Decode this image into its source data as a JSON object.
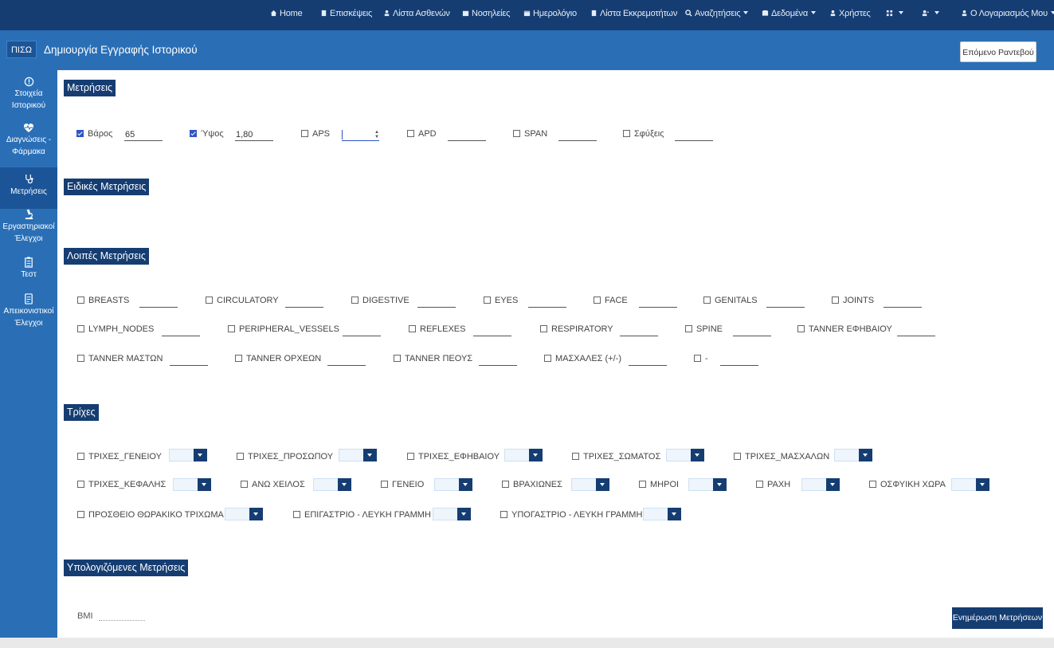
{
  "topnav": {
    "items": [
      {
        "label": "Home",
        "icon": "home-icon"
      },
      {
        "label": "Επισκέψεις",
        "icon": "document-icon"
      },
      {
        "label": "Λίστα Ασθενών",
        "icon": "user-icon"
      },
      {
        "label": "Νοσηλείες",
        "icon": "hospital-icon"
      },
      {
        "label": "Ημερολόγιο",
        "icon": "calendar-icon"
      },
      {
        "label": "Λίστα Εκκρεμοτήτων",
        "icon": "clipboard-icon"
      },
      {
        "label": "Αναζητήσεις",
        "icon": "search-icon"
      },
      {
        "label": "Δεδομένα",
        "icon": "database-icon"
      },
      {
        "label": "Χρήστες",
        "icon": "user-icon"
      },
      {
        "label": "",
        "icon": "grid-icon"
      },
      {
        "label": "",
        "icon": "user-plus-icon"
      },
      {
        "label": "Ο Λογαριασμός Μου",
        "icon": "user-icon"
      }
    ]
  },
  "header": {
    "back_label": "ΠΙΣΩ",
    "title": "Δημιουργία Εγγραφής Ιστορικού",
    "next_appointment_label": "Επόμενο Ραντεβού"
  },
  "sidebar": {
    "items": [
      {
        "line1": "Στοιχεία",
        "line2": "Ιστορικού",
        "icon": "info-icon"
      },
      {
        "line1": "Διαγνώσεις -",
        "line2": "Φάρμακα",
        "icon": "heartbeat-icon"
      },
      {
        "line1": "Μετρήσεις",
        "line2": "",
        "icon": "stethoscope-icon"
      },
      {
        "line1": "Εργαστηριακοί",
        "line2": "Έλεγχοι",
        "icon": "microscope-icon"
      },
      {
        "line1": "Τεστ",
        "line2": "",
        "icon": "checklist-icon"
      },
      {
        "line1": "Απεικονιστικοί",
        "line2": "Έλεγχοι",
        "icon": "scan-icon"
      }
    ]
  },
  "sections": {
    "measurements": "Μετρήσεις",
    "special": "Ειδικές Μετρήσεις",
    "other": "Λοιπές Μετρήσεις",
    "hair": "Τρίχες",
    "computed": "Υπολογιζόμενες Μετρήσεις"
  },
  "measurements": [
    {
      "label": "Βάρος",
      "value": "65",
      "checked": true
    },
    {
      "label": "Ύψος",
      "value": "1,80",
      "checked": true
    },
    {
      "label": "APS",
      "value": "",
      "checked": false
    },
    {
      "label": "APD",
      "value": "",
      "checked": false
    },
    {
      "label": "SPAN",
      "value": "",
      "checked": false
    },
    {
      "label": "Σφύξεις",
      "value": "",
      "checked": false
    }
  ],
  "other_measurements": [
    {
      "label": "BREASTS"
    },
    {
      "label": "CIRCULATORY"
    },
    {
      "label": "DIGESTIVE"
    },
    {
      "label": "EYES"
    },
    {
      "label": "FACE"
    },
    {
      "label": "GENITALS"
    },
    {
      "label": "JOINTS"
    },
    {
      "label": "LYMPH_NODES"
    },
    {
      "label": "PERIPHERAL_VESSELS"
    },
    {
      "label": "REFLEXES"
    },
    {
      "label": "RESPIRATORY"
    },
    {
      "label": "SPINE"
    },
    {
      "label": "TANNER ΕΦΗΒΑΙΟΥ"
    },
    {
      "label": "TANNER ΜΑΣΤΩΝ"
    },
    {
      "label": "TANNER ΟΡΧΕΩΝ"
    },
    {
      "label": "TANNER ΠΕΟΥΣ"
    },
    {
      "label": "ΜΑΣΧΑΛΕΣ (+/-)"
    },
    {
      "label": "-"
    }
  ],
  "hair": [
    {
      "label": "ΤΡΙΧΕΣ_ΓΕΝΕΙΟΥ"
    },
    {
      "label": "ΤΡΙΧΕΣ_ΠΡΟΣΩΠΟΥ"
    },
    {
      "label": "ΤΡΙΧΕΣ_ΕΦΗΒΑΙΟΥ"
    },
    {
      "label": "ΤΡΙΧΕΣ_ΣΩΜΑΤΟΣ"
    },
    {
      "label": "ΤΡΙΧΕΣ_ΜΑΣΧΑΛΩΝ"
    },
    {
      "label": "ΤΡΙΧΕΣ_ΚΕΦΑΛΗΣ"
    },
    {
      "label": "ΑΝΩ ΧΕΙΛΟΣ"
    },
    {
      "label": "ΓΕΝΕΙΟ"
    },
    {
      "label": "ΒΡΑΧΙΩΝΕΣ"
    },
    {
      "label": "ΜΗΡΟΙ"
    },
    {
      "label": "ΡΑΧΗ"
    },
    {
      "label": "ΟΣΦΥΙΚΗ ΧΩΡΑ"
    },
    {
      "label": "ΠΡΟΣΘΕΙΟ ΘΩΡΑΚΙΚΟ ΤΡΙΧΩΜΑ"
    },
    {
      "label": "ΕΠΙΓΑΣΤΡΙΟ - ΛΕΥΚΗ ΓΡΑΜΜΗ"
    },
    {
      "label": "ΥΠΟΓΑΣΤΡΙΟ - ΛΕΥΚΗ ΓΡΑΜΜΗ"
    }
  ],
  "computed": {
    "bmi_label": "BMI",
    "bmi_value": ""
  },
  "update_button_label": "Ενημέρωση Μετρήσεων",
  "colors": {
    "nav": "#153d72",
    "band": "#2a6fb6",
    "accent": "#2f55c5"
  }
}
